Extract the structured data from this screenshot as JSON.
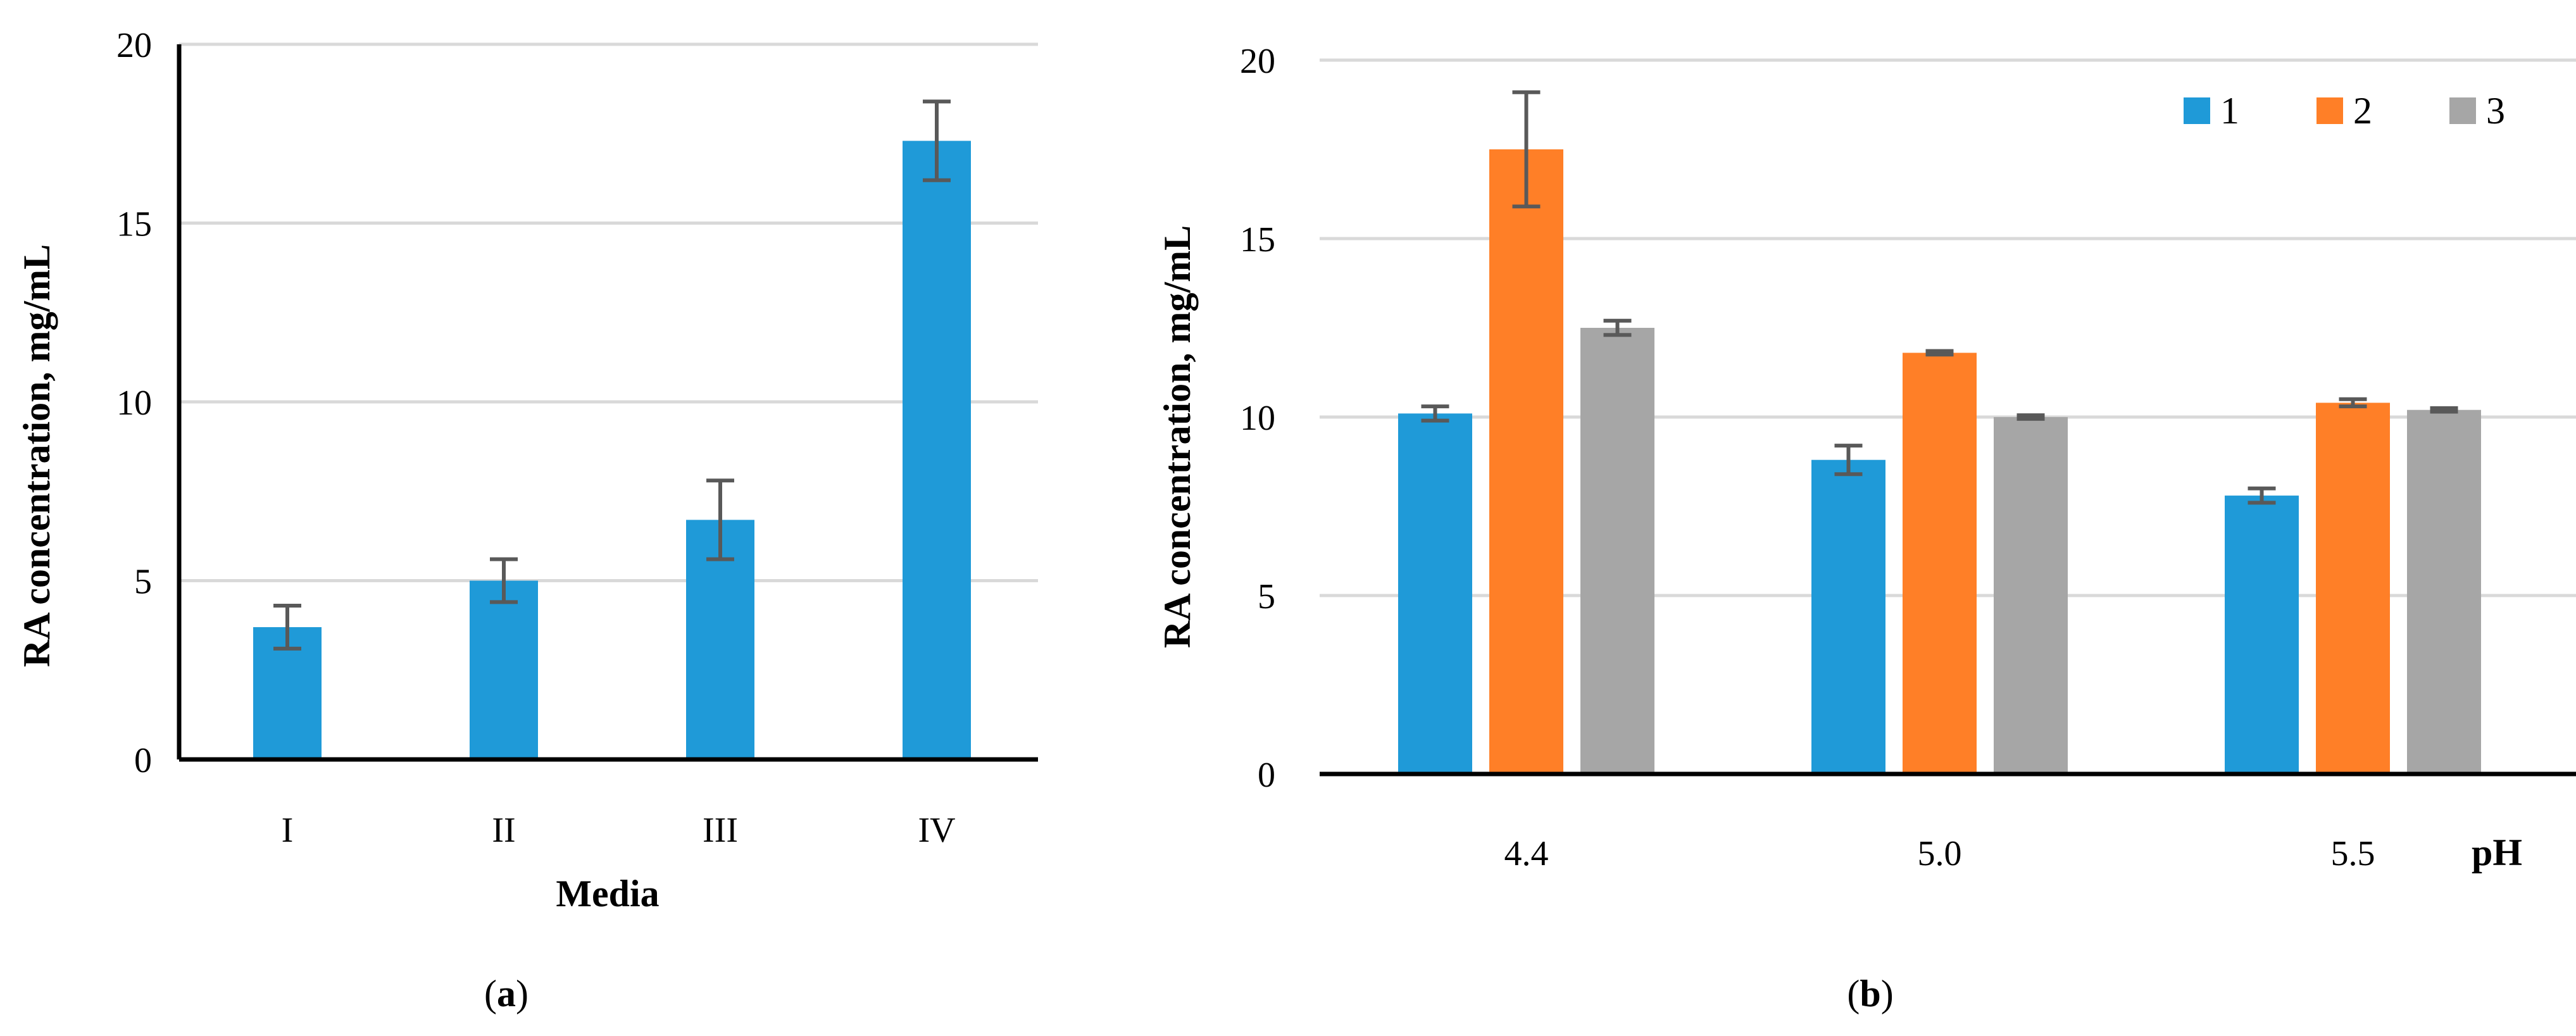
{
  "chart_data": [
    {
      "panel": "a",
      "panel_label_open": "(",
      "panel_label_letter": "a",
      "panel_label_close": ")",
      "type": "bar",
      "title": "",
      "xlabel": "Media",
      "ylabel": "RA concentration, mg/mL",
      "ylim": [
        0,
        20
      ],
      "yticks": [
        0,
        5,
        10,
        15,
        20
      ],
      "grid": true,
      "categories": [
        "I",
        "II",
        "III",
        "IV"
      ],
      "series": [
        {
          "name": "",
          "color": "#1f9ad8",
          "values": [
            3.7,
            5.0,
            6.7,
            17.3
          ],
          "errors": [
            0.6,
            0.6,
            1.1,
            1.1
          ]
        }
      ]
    },
    {
      "panel": "b",
      "panel_label_open": "(",
      "panel_label_letter": "b",
      "panel_label_close": ")",
      "type": "bar",
      "title": "",
      "xlabel": "pH",
      "ylabel": "RA concentration, mg/mL",
      "ylim": [
        0,
        20
      ],
      "yticks": [
        0,
        5,
        10,
        15,
        20
      ],
      "grid": true,
      "legend_position": "top-right",
      "categories": [
        "4.4",
        "5.0",
        "5.5"
      ],
      "series": [
        {
          "name": "1",
          "color": "#1f9ad8",
          "values": [
            10.1,
            8.8,
            7.8
          ],
          "errors": [
            0.2,
            0.4,
            0.2
          ]
        },
        {
          "name": "2",
          "color": "#ff7f27",
          "values": [
            17.5,
            11.8,
            10.4
          ],
          "errors": [
            1.6,
            0.05,
            0.1
          ]
        },
        {
          "name": "3",
          "color": "#a6a6a6",
          "values": [
            12.5,
            10.0,
            10.2
          ],
          "errors": [
            0.2,
            0.05,
            0.05
          ]
        }
      ]
    }
  ]
}
